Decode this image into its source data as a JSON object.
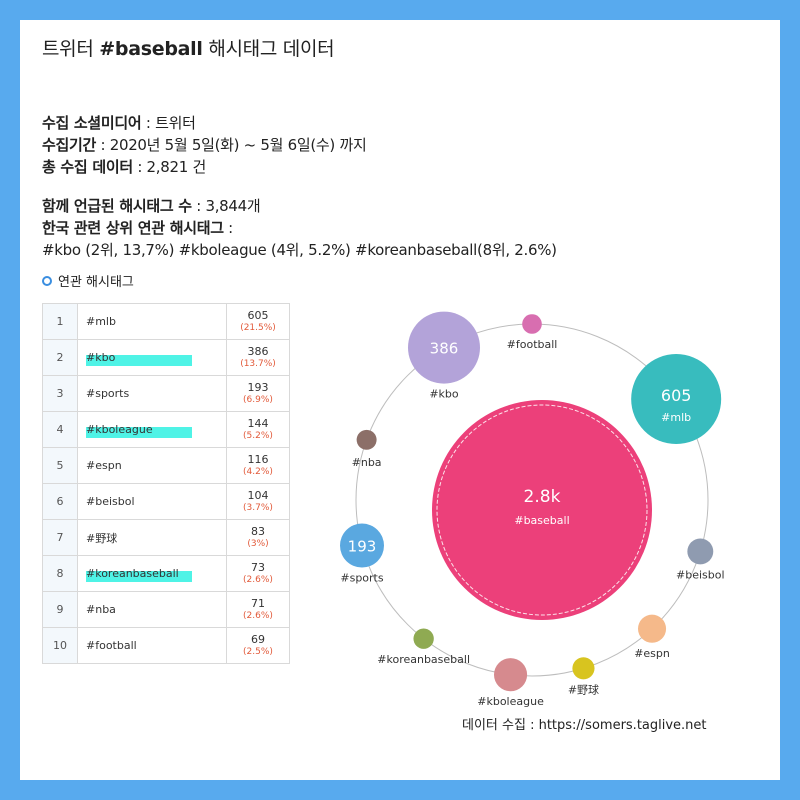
{
  "title": {
    "prefix": "트위터 ",
    "tag": "#baseball",
    "suffix": " 해시태그 데이터"
  },
  "info": [
    {
      "label": "수집 소셜미디어",
      "value": " : 트위터"
    },
    {
      "label": "수집기간",
      "value": " : 2020년 5월 5일(화) ~ 5월 6일(수) 까지"
    },
    {
      "label": "총 수집 데이터",
      "value": " : 2,821 건"
    }
  ],
  "info2": [
    {
      "label": "함께 언급된 해시태그 수",
      "value": " : 3,844개"
    },
    {
      "label": "한국 관련 상위 연관 해시태그",
      "value": " :"
    }
  ],
  "korea_tags_line": "#kbo (2위, 13,7%)  #kboleague (4위, 5.2%)  #koreanbaseball(8위, 2.6%)",
  "section_title": "연관 해시태그",
  "table": [
    {
      "rank": "1",
      "tag": "#mlb",
      "count": "605",
      "pct": "(21.5%)",
      "highlight": false
    },
    {
      "rank": "2",
      "tag": "#kbo",
      "count": "386",
      "pct": "(13.7%)",
      "highlight": true
    },
    {
      "rank": "3",
      "tag": "#sports",
      "count": "193",
      "pct": "(6.9%)",
      "highlight": false
    },
    {
      "rank": "4",
      "tag": "#kboleague",
      "count": "144",
      "pct": "(5.2%)",
      "highlight": true
    },
    {
      "rank": "5",
      "tag": "#espn",
      "count": "116",
      "pct": "(4.2%)",
      "highlight": false
    },
    {
      "rank": "6",
      "tag": "#beisbol",
      "count": "104",
      "pct": "(3.7%)",
      "highlight": false
    },
    {
      "rank": "7",
      "tag": "#野球",
      "count": "83",
      "pct": "(3%)",
      "highlight": false
    },
    {
      "rank": "8",
      "tag": "#koreanbaseball",
      "count": "73",
      "pct": "(2.6%)",
      "highlight": true
    },
    {
      "rank": "9",
      "tag": "#nba",
      "count": "71",
      "pct": "(2.6%)",
      "highlight": false
    },
    {
      "rank": "10",
      "tag": "#football",
      "count": "69",
      "pct": "(2.5%)",
      "highlight": false
    }
  ],
  "chart_data": {
    "type": "bubble",
    "center": {
      "label": "#baseball",
      "value_label": "2.8k",
      "value": 2821,
      "color": "#ec407a"
    },
    "bubbles": [
      {
        "label": "#football",
        "value": 69,
        "color": "#d86eb0"
      },
      {
        "label": "#mlb",
        "value": 605,
        "value_label": "605",
        "color": "#38bcbe"
      },
      {
        "label": "#beisbol",
        "value": 104,
        "color": "#8f9bb0"
      },
      {
        "label": "#espn",
        "value": 116,
        "color": "#f5b98a"
      },
      {
        "label": "#野球",
        "value": 83,
        "color": "#d8c41f"
      },
      {
        "label": "#kboleague",
        "value": 144,
        "color": "#d68a8e"
      },
      {
        "label": "#koreanbaseball",
        "value": 73,
        "color": "#8faa52"
      },
      {
        "label": "#sports",
        "value": 193,
        "value_label": "193",
        "color": "#5aa8e0"
      },
      {
        "label": "#nba",
        "value": 71,
        "color": "#8c6f68"
      },
      {
        "label": "#kbo",
        "value": 386,
        "value_label": "386",
        "color": "#b3a3d9"
      }
    ]
  },
  "credit": "데이터 수집 : https://somers.taglive.net"
}
